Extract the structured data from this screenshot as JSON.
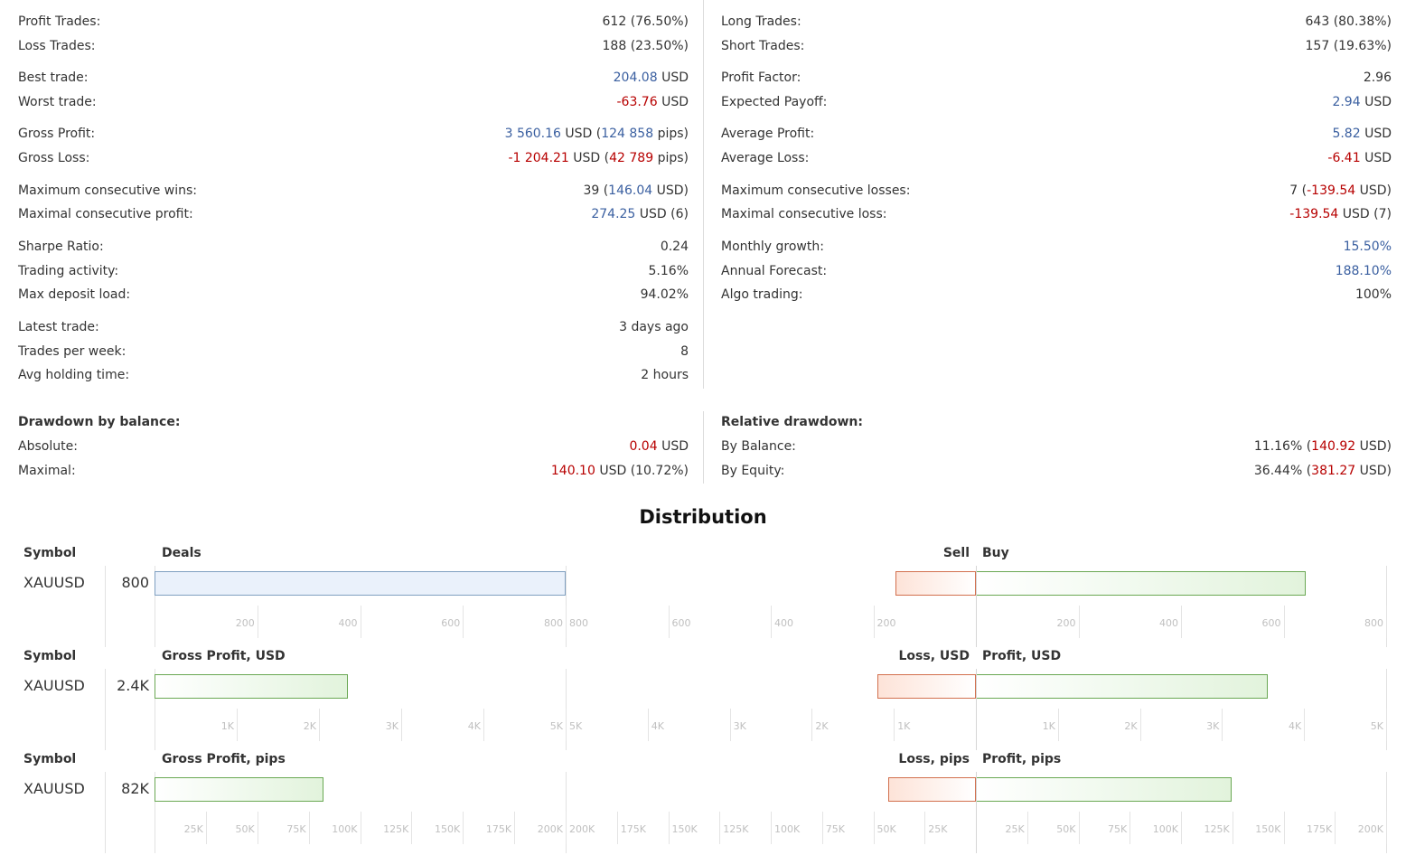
{
  "stats": {
    "left": [
      {
        "label": "Profit Trades:",
        "parts": [
          {
            "t": "612 (76.50%)",
            "c": ""
          }
        ]
      },
      {
        "label": "Loss Trades:",
        "parts": [
          {
            "t": "188 (23.50%)",
            "c": ""
          }
        ]
      },
      {
        "label": "Best trade:",
        "parts": [
          {
            "t": "204.08",
            "c": "pos"
          },
          {
            "t": " USD",
            "c": ""
          }
        ]
      },
      {
        "label": "Worst trade:",
        "parts": [
          {
            "t": "-63.76",
            "c": "neg"
          },
          {
            "t": " USD",
            "c": ""
          }
        ]
      },
      {
        "label": "Gross Profit:",
        "parts": [
          {
            "t": "3 560.16",
            "c": "pos"
          },
          {
            "t": " USD (",
            "c": ""
          },
          {
            "t": "124 858",
            "c": "pos"
          },
          {
            "t": " pips)",
            "c": ""
          }
        ]
      },
      {
        "label": "Gross Loss:",
        "parts": [
          {
            "t": "-1 204.21",
            "c": "neg"
          },
          {
            "t": " USD (",
            "c": ""
          },
          {
            "t": "42 789",
            "c": "neg"
          },
          {
            "t": " pips)",
            "c": ""
          }
        ]
      },
      {
        "label": "Maximum consecutive wins:",
        "parts": [
          {
            "t": "39 (",
            "c": ""
          },
          {
            "t": "146.04",
            "c": "pos"
          },
          {
            "t": " USD)",
            "c": ""
          }
        ]
      },
      {
        "label": "Maximal consecutive profit:",
        "parts": [
          {
            "t": "274.25",
            "c": "pos"
          },
          {
            "t": " USD (6)",
            "c": ""
          }
        ]
      },
      {
        "label": "Sharpe Ratio:",
        "parts": [
          {
            "t": "0.24",
            "c": ""
          }
        ]
      },
      {
        "label": "Trading activity:",
        "parts": [
          {
            "t": "5.16%",
            "c": ""
          }
        ]
      },
      {
        "label": "Max deposit load:",
        "parts": [
          {
            "t": "94.02%",
            "c": ""
          }
        ]
      },
      {
        "label": "Latest trade:",
        "parts": [
          {
            "t": "3 days ago",
            "c": ""
          }
        ]
      },
      {
        "label": "Trades per week:",
        "parts": [
          {
            "t": "8",
            "c": ""
          }
        ]
      },
      {
        "label": "Avg holding time:",
        "parts": [
          {
            "t": "2 hours",
            "c": ""
          }
        ]
      }
    ],
    "left_tops": [
      14,
      41,
      76,
      103,
      138,
      165,
      201,
      227,
      263,
      290,
      316,
      352,
      379,
      405
    ],
    "right": [
      {
        "label": "Long Trades:",
        "parts": [
          {
            "t": "643 (80.38%)",
            "c": ""
          }
        ]
      },
      {
        "label": "Short Trades:",
        "parts": [
          {
            "t": "157 (19.63%)",
            "c": ""
          }
        ]
      },
      {
        "label": "Profit Factor:",
        "parts": [
          {
            "t": "2.96",
            "c": ""
          }
        ]
      },
      {
        "label": "Expected Payoff:",
        "parts": [
          {
            "t": "2.94",
            "c": "pos"
          },
          {
            "t": " USD",
            "c": ""
          }
        ]
      },
      {
        "label": "Average Profit:",
        "parts": [
          {
            "t": "5.82",
            "c": "pos"
          },
          {
            "t": " USD",
            "c": ""
          }
        ]
      },
      {
        "label": "Average Loss:",
        "parts": [
          {
            "t": "-6.41",
            "c": "neg"
          },
          {
            "t": " USD",
            "c": ""
          }
        ]
      },
      {
        "label": "Maximum consecutive losses:",
        "parts": [
          {
            "t": "7 (",
            "c": ""
          },
          {
            "t": "-139.54",
            "c": "neg"
          },
          {
            "t": " USD)",
            "c": ""
          }
        ]
      },
      {
        "label": "Maximal consecutive loss:",
        "parts": [
          {
            "t": "-139.54",
            "c": "neg"
          },
          {
            "t": " USD (7)",
            "c": ""
          }
        ]
      },
      {
        "label": "Monthly growth:",
        "parts": [
          {
            "t": "15.50%",
            "c": "pos"
          }
        ]
      },
      {
        "label": "Annual Forecast:",
        "parts": [
          {
            "t": "188.10%",
            "c": "pos"
          }
        ]
      },
      {
        "label": "Algo trading:",
        "parts": [
          {
            "t": "100%",
            "c": ""
          }
        ]
      }
    ],
    "right_tops": [
      14,
      41,
      76,
      103,
      138,
      165,
      201,
      227,
      263,
      290,
      316
    ]
  },
  "drawdown": {
    "left": {
      "title": "Drawdown by balance:",
      "rows": [
        {
          "label": "Absolute:",
          "parts": [
            {
              "t": "0.04",
              "c": "neg"
            },
            {
              "t": " USD",
              "c": ""
            }
          ]
        },
        {
          "label": "Maximal:",
          "parts": [
            {
              "t": "140.10",
              "c": "neg"
            },
            {
              "t": " USD (10.72%)",
              "c": ""
            }
          ]
        }
      ]
    },
    "right": {
      "title": "Relative drawdown:",
      "rows": [
        {
          "label": "By Balance:",
          "parts": [
            {
              "t": "11.16% (",
              "c": ""
            },
            {
              "t": "140.92",
              "c": "neg"
            },
            {
              "t": " USD)",
              "c": ""
            }
          ]
        },
        {
          "label": "By Equity:",
          "parts": [
            {
              "t": "36.44% (",
              "c": ""
            },
            {
              "t": "381.27",
              "c": "neg"
            },
            {
              "t": " USD)",
              "c": ""
            }
          ]
        }
      ]
    }
  },
  "distribution": {
    "title": "Distribution",
    "symbol_header": "Symbol"
  },
  "colors": {
    "positive": "#3a5fa0",
    "negative": "#b70000",
    "bar_blue_fill": "#eaf1fb",
    "bar_green_border": "#6aa853",
    "bar_red_border": "#d2704e"
  },
  "chart_data": [
    {
      "type": "bar",
      "title": "Deals",
      "symbol": "XAUUSD",
      "total_label": "800",
      "categories": [
        "XAUUSD"
      ],
      "values": [
        800
      ],
      "ticks": [
        "200",
        "400",
        "600",
        "800"
      ],
      "xlim": [
        0,
        800
      ],
      "split": {
        "left_title": "Sell",
        "right_title": "Buy",
        "left_values": [
          157
        ],
        "right_values": [
          643
        ],
        "left_ticks": [
          "800",
          "600",
          "400",
          "200"
        ],
        "right_ticks": [
          "200",
          "400",
          "600",
          "800"
        ],
        "xlim": [
          0,
          800
        ]
      }
    },
    {
      "type": "bar",
      "title": "Gross Profit, USD",
      "symbol": "XAUUSD",
      "total_label": "2.4K",
      "categories": [
        "XAUUSD"
      ],
      "values": [
        2356
      ],
      "ticks": [
        "1K",
        "2K",
        "3K",
        "4K",
        "5K"
      ],
      "xlim": [
        0,
        5000
      ],
      "split": {
        "left_title": "Loss, USD",
        "right_title": "Profit, USD",
        "left_values": [
          1204
        ],
        "right_values": [
          3560
        ],
        "left_ticks": [
          "5K",
          "4K",
          "3K",
          "2K",
          "1K"
        ],
        "right_ticks": [
          "1K",
          "2K",
          "3K",
          "4K",
          "5K"
        ],
        "xlim": [
          0,
          5000
        ]
      }
    },
    {
      "type": "bar",
      "title": "Gross Profit, pips",
      "symbol": "XAUUSD",
      "total_label": "82K",
      "categories": [
        "XAUUSD"
      ],
      "values": [
        82069
      ],
      "ticks": [
        "25K",
        "50K",
        "75K",
        "100K",
        "125K",
        "150K",
        "175K",
        "200K"
      ],
      "xlim": [
        0,
        200000
      ],
      "split": {
        "left_title": "Loss, pips",
        "right_title": "Profit, pips",
        "left_values": [
          42789
        ],
        "right_values": [
          124858
        ],
        "left_ticks": [
          "200K",
          "175K",
          "150K",
          "125K",
          "100K",
          "75K",
          "50K",
          "25K"
        ],
        "right_ticks": [
          "25K",
          "50K",
          "75K",
          "100K",
          "125K",
          "150K",
          "175K",
          "200K"
        ],
        "xlim": [
          0,
          200000
        ]
      }
    }
  ]
}
